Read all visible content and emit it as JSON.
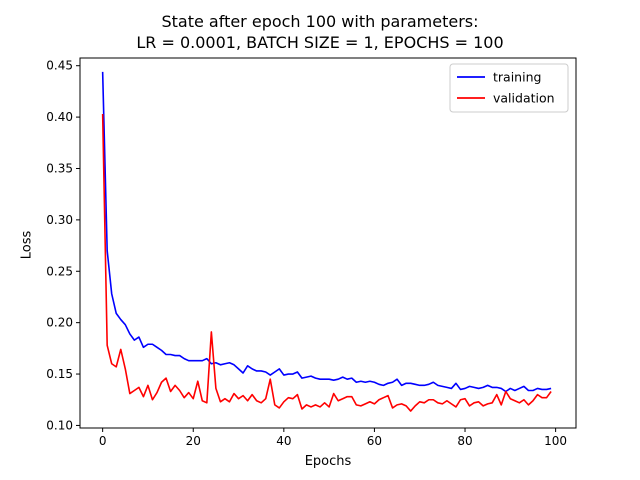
{
  "chart_data": {
    "type": "line",
    "title": [
      "State after epoch 100 with parameters:",
      "LR = 0.0001, BATCH SIZE = 1, EPOCHS = 100"
    ],
    "xlabel": "Epochs",
    "ylabel": "Loss",
    "xlim": [
      -5,
      104.5
    ],
    "ylim": [
      0.0975,
      0.4575
    ],
    "xticks": [
      0,
      20,
      40,
      60,
      80,
      100
    ],
    "yticks": [
      0.1,
      0.15,
      0.2,
      0.25,
      0.3,
      0.35,
      0.4,
      0.45
    ],
    "ytick_labels": [
      "0.10",
      "0.15",
      "0.20",
      "0.25",
      "0.30",
      "0.35",
      "0.40",
      "0.45"
    ],
    "grid": false,
    "legend_position": "top-right",
    "series": [
      {
        "name": "training",
        "color": "#0000ff",
        "values": [
          0.444,
          0.27,
          0.228,
          0.209,
          0.203,
          0.198,
          0.189,
          0.183,
          0.186,
          0.176,
          0.179,
          0.179,
          0.176,
          0.173,
          0.169,
          0.169,
          0.168,
          0.168,
          0.165,
          0.163,
          0.163,
          0.163,
          0.163,
          0.165,
          0.16,
          0.161,
          0.159,
          0.16,
          0.161,
          0.159,
          0.155,
          0.151,
          0.158,
          0.155,
          0.153,
          0.153,
          0.152,
          0.149,
          0.152,
          0.155,
          0.149,
          0.15,
          0.15,
          0.152,
          0.146,
          0.147,
          0.148,
          0.146,
          0.145,
          0.145,
          0.145,
          0.144,
          0.145,
          0.147,
          0.145,
          0.146,
          0.142,
          0.143,
          0.142,
          0.143,
          0.142,
          0.14,
          0.139,
          0.141,
          0.142,
          0.145,
          0.139,
          0.141,
          0.141,
          0.14,
          0.139,
          0.139,
          0.14,
          0.142,
          0.139,
          0.138,
          0.137,
          0.136,
          0.141,
          0.135,
          0.136,
          0.138,
          0.137,
          0.136,
          0.137,
          0.139,
          0.137,
          0.137,
          0.136,
          0.133,
          0.136,
          0.134,
          0.136,
          0.138,
          0.134,
          0.134,
          0.136,
          0.135,
          0.135,
          0.136
        ]
      },
      {
        "name": "validation",
        "color": "#ff0000",
        "values": [
          0.403,
          0.178,
          0.16,
          0.157,
          0.174,
          0.155,
          0.131,
          0.134,
          0.137,
          0.128,
          0.139,
          0.125,
          0.132,
          0.142,
          0.146,
          0.133,
          0.139,
          0.134,
          0.127,
          0.132,
          0.126,
          0.143,
          0.124,
          0.122,
          0.191,
          0.136,
          0.123,
          0.126,
          0.123,
          0.131,
          0.126,
          0.129,
          0.124,
          0.13,
          0.124,
          0.122,
          0.126,
          0.145,
          0.12,
          0.117,
          0.123,
          0.127,
          0.126,
          0.13,
          0.116,
          0.12,
          0.118,
          0.12,
          0.118,
          0.122,
          0.118,
          0.131,
          0.124,
          0.126,
          0.128,
          0.128,
          0.12,
          0.119,
          0.121,
          0.123,
          0.121,
          0.125,
          0.127,
          0.129,
          0.117,
          0.12,
          0.121,
          0.119,
          0.114,
          0.119,
          0.123,
          0.122,
          0.125,
          0.125,
          0.122,
          0.121,
          0.124,
          0.121,
          0.118,
          0.125,
          0.126,
          0.119,
          0.122,
          0.123,
          0.119,
          0.121,
          0.122,
          0.13,
          0.12,
          0.133,
          0.126,
          0.124,
          0.122,
          0.125,
          0.12,
          0.124,
          0.13,
          0.127,
          0.127,
          0.133
        ]
      }
    ]
  }
}
